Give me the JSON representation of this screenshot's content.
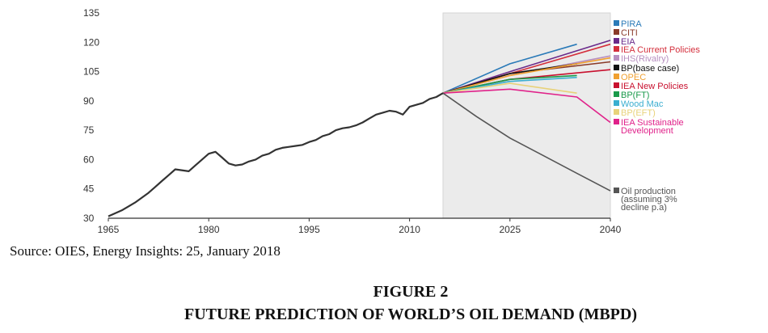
{
  "chart_data": {
    "type": "line",
    "xlim": [
      1965,
      2040
    ],
    "ylim": [
      30,
      135
    ],
    "x_ticks": [
      "1965",
      "1980",
      "1995",
      "2010",
      "2025",
      "2040"
    ],
    "y_ticks": [
      "135",
      "120",
      "105",
      "90",
      "75",
      "60",
      "45",
      "30"
    ],
    "forecast_shading_start": 2015,
    "grid": false,
    "legend_placement": "right",
    "historical": {
      "color": "#333333",
      "points": [
        [
          1965,
          31
        ],
        [
          1967,
          34
        ],
        [
          1969,
          38
        ],
        [
          1971,
          43
        ],
        [
          1972,
          46
        ],
        [
          1973,
          49
        ],
        [
          1974,
          52
        ],
        [
          1975,
          55
        ],
        [
          1977,
          54
        ],
        [
          1978,
          57
        ],
        [
          1979,
          60
        ],
        [
          1980,
          63
        ],
        [
          1981,
          64
        ],
        [
          1982,
          61
        ],
        [
          1983,
          58
        ],
        [
          1984,
          57
        ],
        [
          1985,
          57.5
        ],
        [
          1986,
          59
        ],
        [
          1987,
          60
        ],
        [
          1988,
          62
        ],
        [
          1989,
          63
        ],
        [
          1990,
          65
        ],
        [
          1991,
          66
        ],
        [
          1992,
          66.5
        ],
        [
          1993,
          67
        ],
        [
          1994,
          67.5
        ],
        [
          1995,
          69
        ],
        [
          1996,
          70
        ],
        [
          1997,
          72
        ],
        [
          1998,
          73
        ],
        [
          1999,
          75
        ],
        [
          2000,
          76
        ],
        [
          2001,
          76.5
        ],
        [
          2002,
          77.5
        ],
        [
          2003,
          79
        ],
        [
          2004,
          81
        ],
        [
          2005,
          83
        ],
        [
          2006,
          84
        ],
        [
          2007,
          85
        ],
        [
          2008,
          84.5
        ],
        [
          2009,
          83
        ],
        [
          2010,
          87
        ],
        [
          2011,
          88
        ],
        [
          2012,
          89
        ],
        [
          2013,
          91
        ],
        [
          2014,
          92
        ],
        [
          2015,
          94
        ]
      ]
    },
    "series": [
      {
        "name": "PIRA",
        "color": "#2a7ab8",
        "points": [
          [
            2015,
            94
          ],
          [
            2025,
            109
          ],
          [
            2035,
            119
          ]
        ]
      },
      {
        "name": "CITI",
        "color": "#8a3b2a",
        "points": [
          [
            2015,
            94
          ],
          [
            2025,
            104
          ],
          [
            2040,
            110
          ]
        ]
      },
      {
        "name": "EIA",
        "color": "#6a2a8a",
        "points": [
          [
            2015,
            94
          ],
          [
            2025,
            105
          ],
          [
            2040,
            121
          ]
        ]
      },
      {
        "name": "IEA Current Policies",
        "color": "#d42f3c",
        "points": [
          [
            2015,
            94
          ],
          [
            2025,
            104
          ],
          [
            2040,
            119
          ]
        ]
      },
      {
        "name": "IHS(Rivalry)",
        "color": "#b78fc0",
        "points": [
          [
            2015,
            94
          ],
          [
            2025,
            103
          ],
          [
            2040,
            113
          ]
        ]
      },
      {
        "name": "BP(base case)",
        "color": "#111111",
        "points": [
          [
            2015,
            94
          ],
          [
            2025,
            104
          ],
          [
            2035,
            109
          ]
        ]
      },
      {
        "name": "OPEC",
        "color": "#f0a030",
        "points": [
          [
            2015,
            94
          ],
          [
            2025,
            103
          ],
          [
            2040,
            112
          ]
        ]
      },
      {
        "name": "IEA New Policies",
        "color": "#c8102e",
        "points": [
          [
            2015,
            94
          ],
          [
            2025,
            101
          ],
          [
            2040,
            106
          ]
        ]
      },
      {
        "name": "BP(FT)",
        "color": "#1a9a4a",
        "points": [
          [
            2015,
            94
          ],
          [
            2025,
            101
          ],
          [
            2035,
            103
          ]
        ]
      },
      {
        "name": "Wood Mac",
        "color": "#3aaed0",
        "points": [
          [
            2015,
            94
          ],
          [
            2025,
            100
          ],
          [
            2035,
            102
          ]
        ]
      },
      {
        "name": "BP(EFT)",
        "color": "#e8d27a",
        "points": [
          [
            2015,
            94
          ],
          [
            2025,
            99
          ],
          [
            2035,
            94
          ]
        ]
      },
      {
        "name": "IEA Sustainable Development",
        "color": "#e0228a",
        "points": [
          [
            2015,
            94
          ],
          [
            2025,
            96
          ],
          [
            2035,
            92
          ],
          [
            2040,
            79
          ]
        ]
      },
      {
        "name": "Oil production (assuming 3% decline p.a)",
        "color": "#555555",
        "points": [
          [
            2015,
            94
          ],
          [
            2020,
            82
          ],
          [
            2025,
            71
          ],
          [
            2030,
            62
          ],
          [
            2035,
            53
          ],
          [
            2040,
            44
          ]
        ]
      }
    ],
    "legend": [
      {
        "color": "#2a7ab8",
        "lines": [
          "PIRA"
        ]
      },
      {
        "color": "#8a3b2a",
        "lines": [
          "CITI"
        ]
      },
      {
        "color": "#6a2a8a",
        "lines": [
          "EIA"
        ]
      },
      {
        "color": "#d42f3c",
        "lines": [
          "IEA Current Policies"
        ]
      },
      {
        "color": "#b78fc0",
        "lines": [
          "IHS(Rivalry)"
        ]
      },
      {
        "color": "#111111",
        "lines": [
          "BP(base case)"
        ]
      },
      {
        "color": "#f0a030",
        "lines": [
          "OPEC"
        ]
      },
      {
        "color": "#c8102e",
        "lines": [
          "IEA New Policies"
        ]
      },
      {
        "color": "#1a9a4a",
        "lines": [
          "BP(FT)"
        ]
      },
      {
        "color": "#3aaed0",
        "lines": [
          "Wood Mac"
        ]
      },
      {
        "color": "#e8d27a",
        "lines": [
          "BP(EFT)"
        ]
      },
      {
        "color": "#e0228a",
        "lines": [
          "IEA Sustainable",
          "Development"
        ]
      },
      {
        "color": "#555555",
        "lines": [
          "Oil production",
          "(assuming 3%",
          "decline p.a)"
        ]
      }
    ]
  },
  "caption": {
    "source": "Source: OIES, Energy Insights: 25, January 2018",
    "figure_number": "FIGURE 2",
    "figure_title": "FUTURE PREDICTION OF WORLD’S OIL DEMAND (MBPD)"
  }
}
